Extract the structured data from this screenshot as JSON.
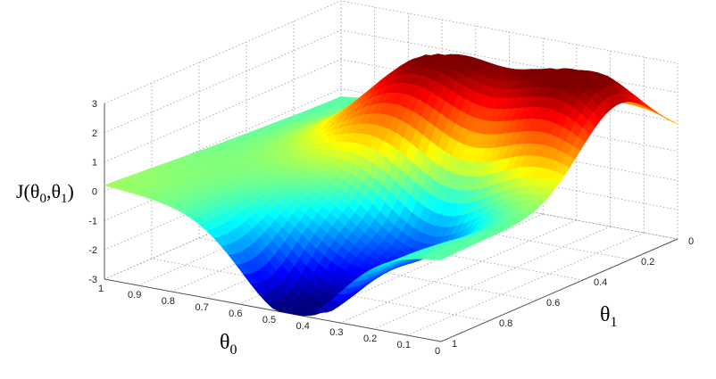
{
  "chart_data": {
    "type": "surface",
    "zlabel": {
      "main": "J(θ",
      "sub0": "0",
      "mid": ",θ",
      "sub1": "1",
      "end": ")"
    },
    "xlabel": {
      "main": "θ",
      "sub": "0"
    },
    "ylabel": {
      "main": "θ",
      "sub": "1"
    },
    "xlim": [
      0,
      1
    ],
    "ylim": [
      0,
      1
    ],
    "zlim": [
      -3,
      3
    ],
    "x_ticks": [
      "0",
      "0.1",
      "0.2",
      "0.3",
      "0.4",
      "0.5",
      "0.6",
      "0.7",
      "0.8",
      "0.9",
      "1"
    ],
    "y_ticks": [
      "0",
      "0.2",
      "0.4",
      "0.6",
      "0.8",
      "1"
    ],
    "z_ticks": [
      "-3",
      "-2",
      "-1",
      "0",
      "1",
      "2",
      "3"
    ],
    "grid": true,
    "colormap": "jet",
    "surface_features": [
      {
        "kind": "peak",
        "theta0": 0.52,
        "theta1": 0.3,
        "z": 2.9
      },
      {
        "kind": "peak",
        "theta0": 0.12,
        "theta1": 0.25,
        "z": 3.0
      },
      {
        "kind": "valley",
        "theta0": 0.45,
        "theta1": 0.95,
        "z": -3.0
      },
      {
        "kind": "valley",
        "theta0": 0.32,
        "theta1": 0.62,
        "z": -2.0
      }
    ]
  }
}
